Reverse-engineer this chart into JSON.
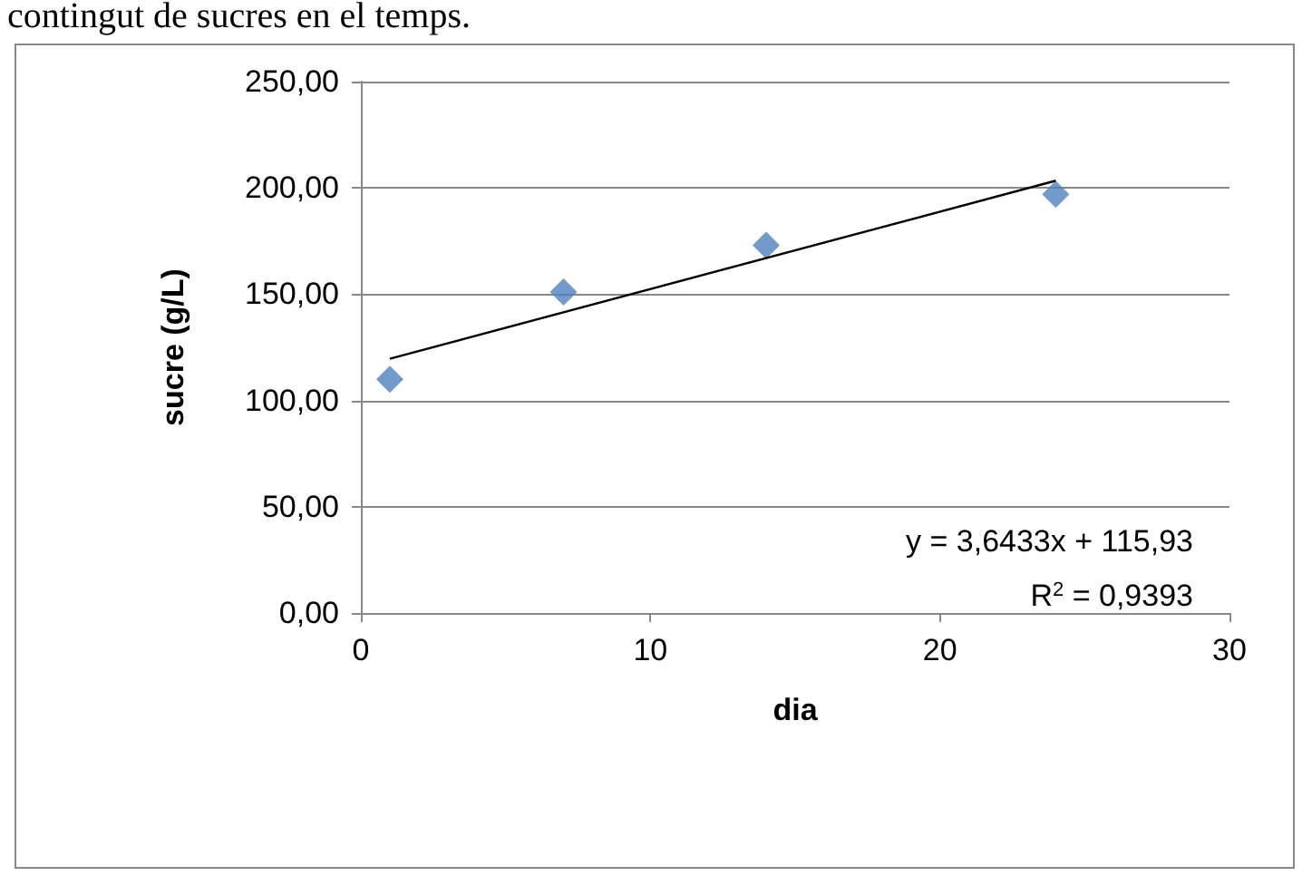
{
  "chart_data": {
    "type": "scatter",
    "title": "contingut de sucres en el temps.",
    "xlabel": "dia",
    "ylabel": "sucre (g/L)",
    "annotations": [
      "y = 3,6433x + 115,93",
      "R$^{2}$ = 0,9393"
    ],
    "series": [
      {
        "color": "#4f81bd",
        "x": [
          1,
          7,
          14,
          24
        ],
        "values": [
          110,
          151,
          173,
          197
        ],
        "marker": "diamond"
      },
      {
        "type": "line",
        "color": "#000000",
        "x": [
          1,
          24
        ],
        "values": [
          119.6,
          203.4
        ],
        "marker": "none"
      }
    ],
    "xlim": [
      0,
      30
    ],
    "xticks": [
      0,
      10,
      20,
      30
    ],
    "ylim": [
      0,
      250
    ],
    "yticks": [
      {
        "value": 0,
        "label": "0,00"
      },
      {
        "value": 50,
        "label": "50,00"
      },
      {
        "value": 100,
        "label": "100,00"
      },
      {
        "value": 150,
        "label": "150,00"
      },
      {
        "value": 200,
        "label": "200,00"
      },
      {
        "value": 250,
        "label": "250,00"
      }
    ],
    "grid": "y"
  }
}
